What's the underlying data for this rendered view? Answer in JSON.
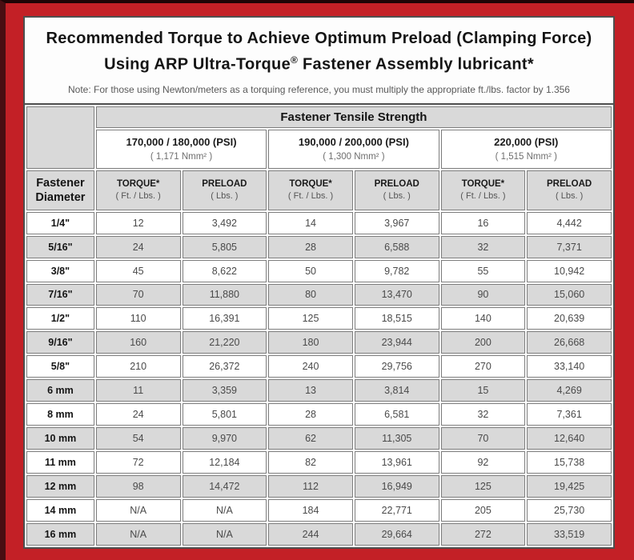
{
  "colors": {
    "frame_red": "#c32026",
    "frame_dark": "#3c0b0e",
    "cell_gray": "#d9d9d9",
    "cell_border_gray": "#7e7e7e",
    "outer_border_gray": "#4f4f4f"
  },
  "header": {
    "title_line1": "Recommended Torque to Achieve Optimum Preload (Clamping Force)",
    "title_line2_pre": "Using ARP Ultra-Torque",
    "title_line2_reg": "®",
    "title_line2_post": " Fastener Assembly lubricant*",
    "note": "Note: For those using Newton/meters as a torquing reference, you must multiply the appropriate ft./lbs. factor by 1.356"
  },
  "table": {
    "tensile_header": "Fastener Tensile Strength",
    "diameter_header": "Fastener Diameter",
    "strength_groups": [
      {
        "psi": "170,000 / 180,000 (PSI)",
        "nmm": "( 1,171 Nmm² )"
      },
      {
        "psi": "190,000 / 200,000 (PSI)",
        "nmm": "( 1,300 Nmm² )"
      },
      {
        "psi": "220,000 (PSI)",
        "nmm": "( 1,515 Nmm² )"
      }
    ],
    "col_headers": {
      "torque_label": "TORQUE*",
      "torque_sub": "( Ft. / Lbs. )",
      "preload_label": "PRELOAD",
      "preload_sub": "( Lbs. )"
    },
    "rows": [
      {
        "diameter": "1/4\"",
        "values": [
          "12",
          "3,492",
          "14",
          "3,967",
          "16",
          "4,442"
        ]
      },
      {
        "diameter": "5/16\"",
        "values": [
          "24",
          "5,805",
          "28",
          "6,588",
          "32",
          "7,371"
        ]
      },
      {
        "diameter": "3/8\"",
        "values": [
          "45",
          "8,622",
          "50",
          "9,782",
          "55",
          "10,942"
        ]
      },
      {
        "diameter": "7/16\"",
        "values": [
          "70",
          "11,880",
          "80",
          "13,470",
          "90",
          "15,060"
        ]
      },
      {
        "diameter": "1/2\"",
        "values": [
          "110",
          "16,391",
          "125",
          "18,515",
          "140",
          "20,639"
        ]
      },
      {
        "diameter": "9/16\"",
        "values": [
          "160",
          "21,220",
          "180",
          "23,944",
          "200",
          "26,668"
        ]
      },
      {
        "diameter": "5/8\"",
        "values": [
          "210",
          "26,372",
          "240",
          "29,756",
          "270",
          "33,140"
        ]
      },
      {
        "diameter": "6 mm",
        "values": [
          "11",
          "3,359",
          "13",
          "3,814",
          "15",
          "4,269"
        ]
      },
      {
        "diameter": "8 mm",
        "values": [
          "24",
          "5,801",
          "28",
          "6,581",
          "32",
          "7,361"
        ]
      },
      {
        "diameter": "10 mm",
        "values": [
          "54",
          "9,970",
          "62",
          "11,305",
          "70",
          "12,640"
        ]
      },
      {
        "diameter": "11 mm",
        "values": [
          "72",
          "12,184",
          "82",
          "13,961",
          "92",
          "15,738"
        ]
      },
      {
        "diameter": "12 mm",
        "values": [
          "98",
          "14,472",
          "112",
          "16,949",
          "125",
          "19,425"
        ]
      },
      {
        "diameter": "14 mm",
        "values": [
          "N/A",
          "N/A",
          "184",
          "22,771",
          "205",
          "25,730"
        ]
      },
      {
        "diameter": "16 mm",
        "values": [
          "N/A",
          "N/A",
          "244",
          "29,664",
          "272",
          "33,519"
        ]
      }
    ]
  }
}
